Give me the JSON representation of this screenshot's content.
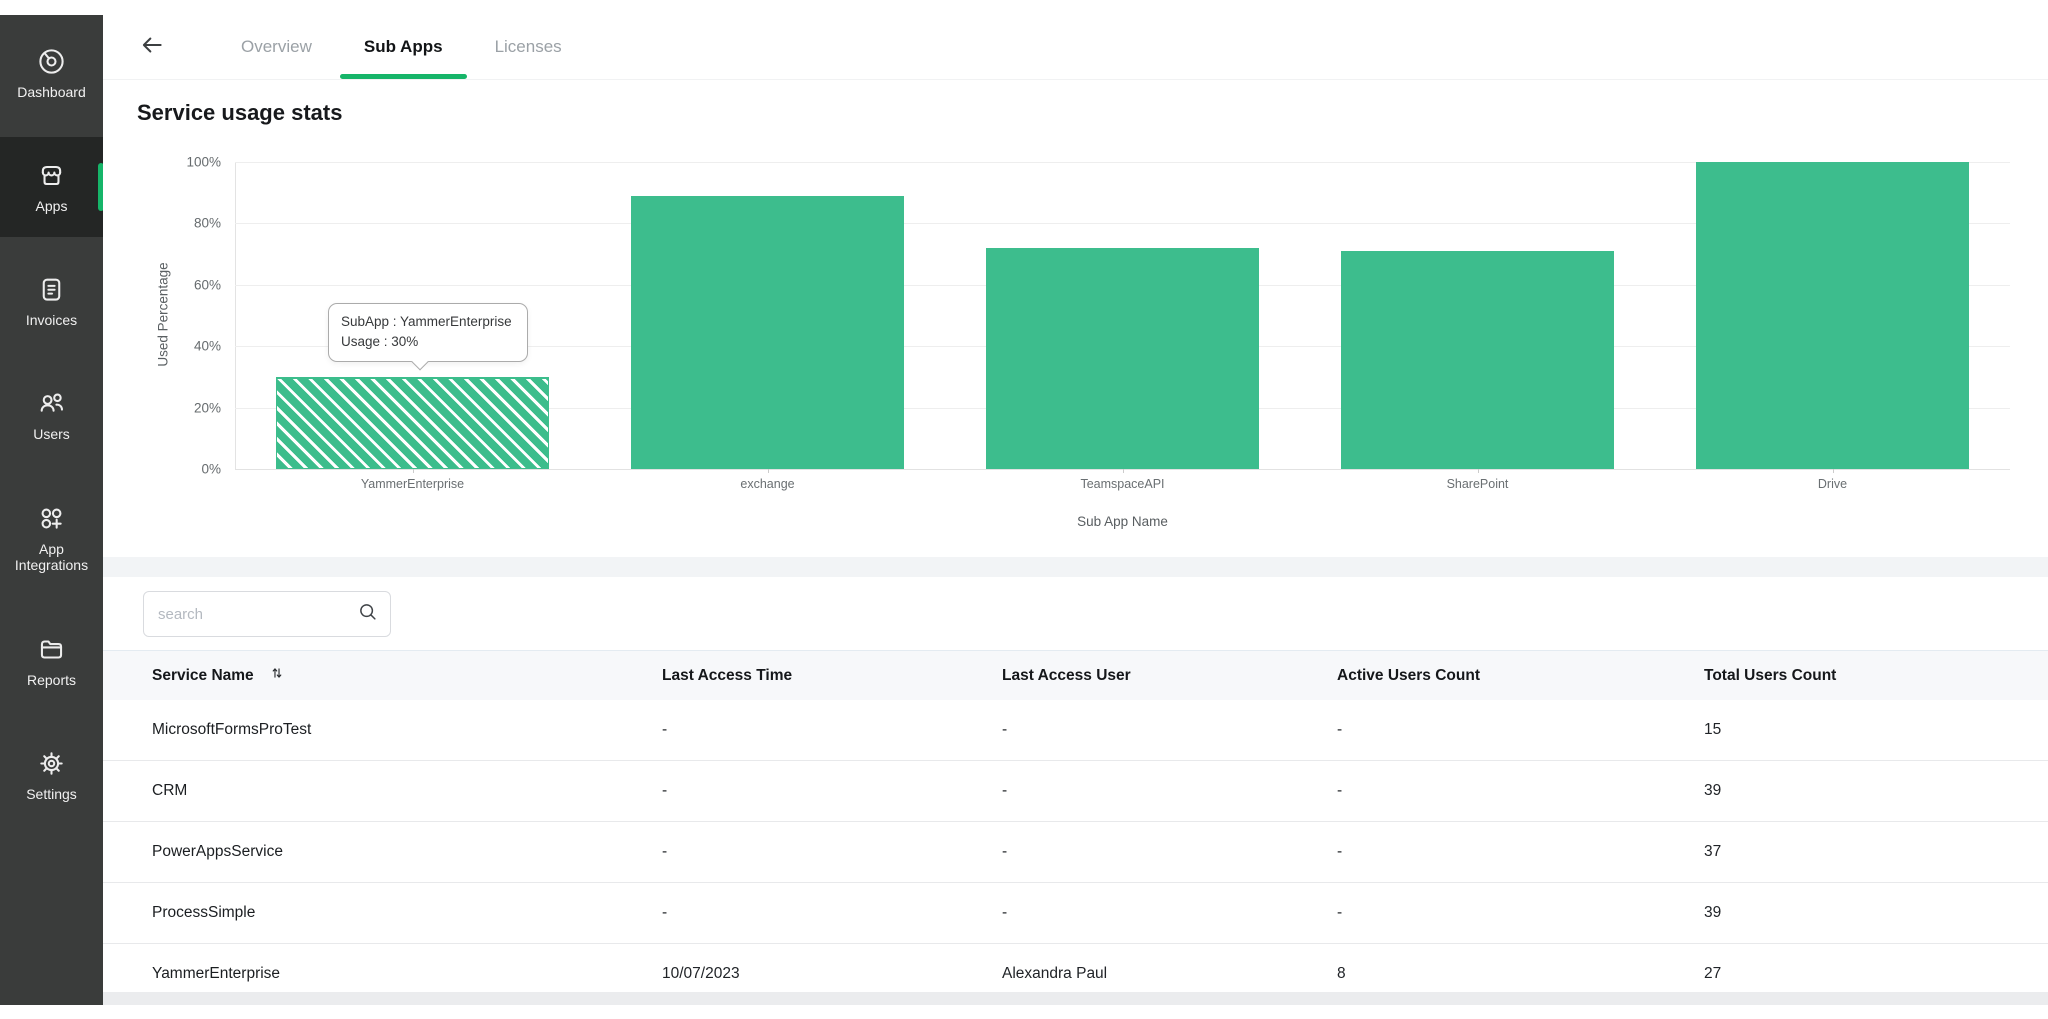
{
  "sidebar": {
    "items": [
      {
        "label": "Dashboard",
        "icon": "dashboard-icon",
        "active": false
      },
      {
        "label": "Apps",
        "icon": "storefront-icon",
        "active": true
      },
      {
        "label": "Invoices",
        "icon": "invoice-document-icon",
        "active": false
      },
      {
        "label": "Users",
        "icon": "users-icon",
        "active": false
      },
      {
        "label": "App Integrations",
        "icon": "app-integrations-icon",
        "active": false
      },
      {
        "label": "Reports",
        "icon": "reports-folder-icon",
        "active": false
      },
      {
        "label": "Settings",
        "icon": "settings-gear-icon",
        "active": false
      }
    ]
  },
  "topbar": {
    "back_icon": "arrow-left-icon",
    "tabs": [
      {
        "label": "Overview",
        "active": false
      },
      {
        "label": "Sub Apps",
        "active": true
      },
      {
        "label": "Licenses",
        "active": false
      }
    ]
  },
  "chart_data": {
    "type": "bar",
    "title": "Service usage stats",
    "categories": [
      "YammerEnterprise",
      "exchange",
      "TeamspaceAPI",
      "SharePoint",
      "Drive"
    ],
    "values": [
      30,
      89,
      72,
      71,
      100
    ],
    "xlabel": "Sub App Name",
    "ylabel": "Used Percentage",
    "ylim": [
      0,
      100
    ],
    "yticks": [
      "0%",
      "20%",
      "40%",
      "60%",
      "80%",
      "100%"
    ],
    "grid": "horizontal",
    "legend": "none",
    "bar_color": "#3dbd8d",
    "highlighted_bar": "YammerEnterprise",
    "highlight_style": "diagonal-hatch",
    "tooltip": {
      "line1": "SubApp : YammerEnterprise",
      "line2": "Usage : 30%"
    }
  },
  "table": {
    "search_placeholder": "search",
    "search_value": "",
    "columns": [
      "Service Name",
      "Last Access Time",
      "Last Access User",
      "Active Users Count",
      "Total Users Count"
    ],
    "sorted_column": "Service Name",
    "rows": [
      [
        "MicrosoftFormsProTest",
        "-",
        "-",
        "-",
        "15"
      ],
      [
        "CRM",
        "-",
        "-",
        "-",
        "39"
      ],
      [
        "PowerAppsService",
        "-",
        "-",
        "-",
        "37"
      ],
      [
        "ProcessSimple",
        "-",
        "-",
        "-",
        "39"
      ],
      [
        "YammerEnterprise",
        "10/07/2023",
        "Alexandra Paul",
        "8",
        "27"
      ]
    ]
  },
  "icons": {
    "search": "search-icon",
    "sort": "sort-arrows-icon",
    "back": "arrow-left-icon"
  },
  "colors": {
    "accent_green": "#16b569",
    "bar_green": "#3dbd8d",
    "sidebar_bg": "#3a3c3b",
    "sidebar_active_bg": "#242625",
    "page_gap_bg": "#f2f4f6",
    "table_header_bg": "#f7f8fa"
  }
}
